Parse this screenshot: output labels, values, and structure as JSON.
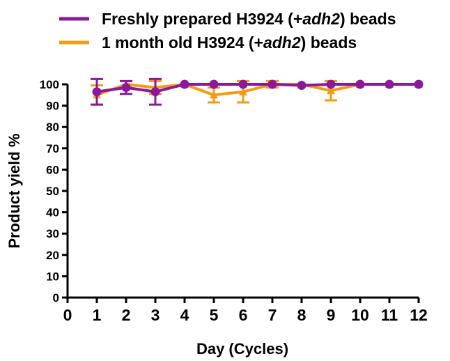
{
  "chart_data": {
    "type": "line",
    "xlabel": "Day (Cycles)",
    "ylabel": "Product yield %",
    "xlim": [
      0,
      12
    ],
    "ylim": [
      0,
      100
    ],
    "x_ticks": [
      0,
      1,
      2,
      3,
      4,
      5,
      6,
      7,
      8,
      9,
      10,
      11,
      12
    ],
    "y_ticks": [
      0,
      10,
      20,
      30,
      40,
      50,
      60,
      70,
      80,
      90,
      100
    ],
    "grid": false,
    "legend_position": "top",
    "series": [
      {
        "name": "Freshly prepared H3924 (+adh2) beads",
        "legend_parts": [
          {
            "text": "Freshly prepared H3924 (+",
            "italic": false
          },
          {
            "text": "adh2",
            "italic": true
          },
          {
            "text": ") beads",
            "italic": false
          }
        ],
        "color": "#8B1A9B",
        "marker": "circle",
        "x": [
          1,
          2,
          3,
          4,
          5,
          6,
          7,
          8,
          9,
          10,
          11,
          12
        ],
        "y": [
          96.5,
          98.5,
          96.5,
          100,
          100,
          100,
          100,
          99.5,
          100,
          100,
          100,
          100
        ],
        "error": [
          6,
          3,
          6,
          0.5,
          0.5,
          0.5,
          0.5,
          0.5,
          0.5,
          0.5,
          0.5,
          0.5
        ]
      },
      {
        "name": "1 month old H3924 (+adh2) beads",
        "legend_parts": [
          {
            "text": "1 month old H3924 (+",
            "italic": false
          },
          {
            "text": "adh2",
            "italic": true
          },
          {
            "text": ") beads",
            "italic": false
          }
        ],
        "color": "#F39C12",
        "marker": "triangle",
        "x": [
          1,
          2,
          3,
          4,
          5,
          6,
          7,
          8,
          9,
          10,
          11,
          12
        ],
        "y": [
          95,
          100,
          98.5,
          100,
          95,
          96.5,
          100,
          100,
          97,
          100,
          100,
          100
        ],
        "error": [
          4.5,
          1.5,
          3,
          0.5,
          3.5,
          5,
          1.5,
          0.5,
          4.5,
          0.5,
          0.5,
          0.5
        ]
      }
    ]
  }
}
